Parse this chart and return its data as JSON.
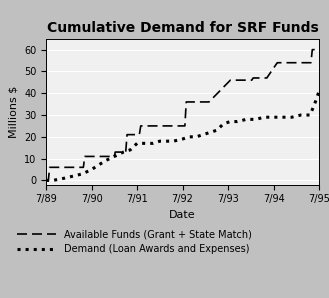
{
  "title": "Cumulative Demand for SRF Funds",
  "xlabel": "Date",
  "ylabel": "Millions $",
  "xlim": [
    0,
    6
  ],
  "ylim": [
    -2,
    65
  ],
  "yticks": [
    0,
    10,
    20,
    30,
    40,
    50,
    60
  ],
  "xtick_labels": [
    "7/89",
    "7/90",
    "7/91",
    "7/92",
    "7/93",
    "7/94",
    "7/95"
  ],
  "background_color": "#c0c0c0",
  "plot_bg_color": "#f0f0f0",
  "available_funds_x": [
    0,
    0.05,
    0.08,
    0.35,
    0.55,
    0.82,
    0.85,
    1.05,
    1.2,
    1.5,
    1.52,
    1.75,
    1.78,
    2.05,
    2.08,
    2.3,
    2.35,
    2.62,
    2.65,
    3.05,
    3.08,
    3.55,
    3.58,
    4.05,
    4.08,
    4.52,
    4.55,
    4.82,
    4.85,
    5.08,
    5.1,
    5.52,
    5.55,
    5.82,
    5.85,
    6.0
  ],
  "available_funds_y": [
    0,
    0,
    6,
    6,
    6,
    6,
    11,
    11,
    11,
    11,
    13,
    13,
    21,
    21,
    25,
    25,
    25,
    25,
    25,
    25,
    36,
    36,
    36,
    46,
    46,
    46,
    47,
    47,
    47,
    54,
    54,
    54,
    54,
    54,
    60,
    60
  ],
  "demand_x": [
    0,
    0.05,
    0.15,
    0.4,
    0.6,
    0.8,
    1.0,
    1.15,
    1.3,
    1.5,
    1.7,
    1.85,
    2.0,
    2.1,
    2.2,
    2.35,
    2.5,
    2.65,
    2.8,
    3.0,
    3.15,
    3.3,
    3.45,
    3.6,
    3.75,
    3.9,
    4.05,
    4.2,
    4.4,
    4.6,
    4.8,
    5.0,
    5.2,
    5.4,
    5.6,
    5.8,
    5.9,
    6.0
  ],
  "demand_y": [
    0,
    0,
    0,
    1,
    2,
    3,
    5,
    7,
    9,
    11,
    13,
    14,
    17,
    17,
    17,
    17,
    18,
    18,
    18,
    19,
    20,
    20,
    21,
    22,
    23,
    26,
    27,
    27,
    28,
    28,
    29,
    29,
    29,
    29,
    30,
    30,
    35,
    41
  ],
  "legend_label_funds": "Available Funds (Grant + State Match)",
  "legend_label_demand": "Demand (Loan Awards and Expenses)",
  "title_fontsize": 10,
  "axis_label_fontsize": 8,
  "tick_fontsize": 7,
  "legend_fontsize": 7
}
